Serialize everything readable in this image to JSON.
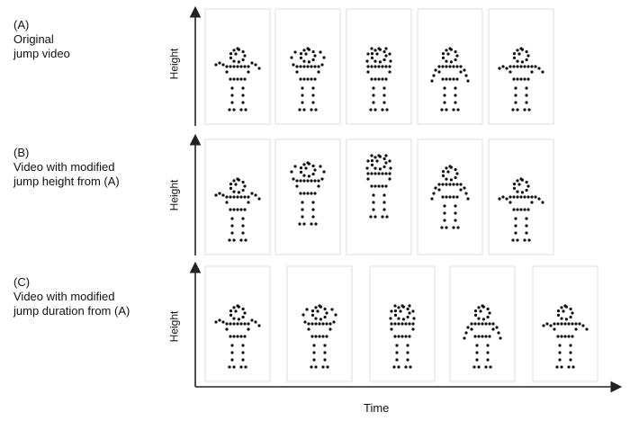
{
  "rows": [
    {
      "letter": "(A)",
      "lines": [
        "Original",
        "jump video"
      ],
      "axis_label": "Height"
    },
    {
      "letter": "(B)",
      "lines": [
        "Video with modified",
        "jump height from (A)"
      ],
      "axis_label": "Height"
    },
    {
      "letter": "(C)",
      "lines": [
        "Video with modified",
        "jump duration from (A)"
      ],
      "axis_label": "Height"
    }
  ],
  "time_label": "Time",
  "colors": {
    "frame_border": "#dcdcdc",
    "axis": "#222222",
    "dot": "#111111"
  },
  "frames": {
    "A": [
      {
        "jump_level": 0.0,
        "pose": "arms-out"
      },
      {
        "jump_level": 0.0,
        "pose": "arms-up"
      },
      {
        "jump_level": 0.0,
        "pose": "arms-up-tight"
      },
      {
        "jump_level": 0.0,
        "pose": "arms-down"
      },
      {
        "jump_level": 0.0,
        "pose": "arms-out-low"
      }
    ],
    "B": [
      {
        "jump_level": 0.0,
        "pose": "arms-out"
      },
      {
        "jump_level": 0.45,
        "pose": "arms-up"
      },
      {
        "jump_level": 0.65,
        "pose": "arms-up-tight"
      },
      {
        "jump_level": 0.35,
        "pose": "arms-down"
      },
      {
        "jump_level": 0.0,
        "pose": "arms-out-low"
      }
    ],
    "C": [
      {
        "jump_level": 0.0,
        "pose": "arms-out"
      },
      {
        "jump_level": 0.0,
        "pose": "arms-up"
      },
      {
        "jump_level": 0.0,
        "pose": "arms-up-tight"
      },
      {
        "jump_level": 0.0,
        "pose": "arms-down"
      },
      {
        "jump_level": 0.0,
        "pose": "arms-out-low"
      }
    ]
  }
}
